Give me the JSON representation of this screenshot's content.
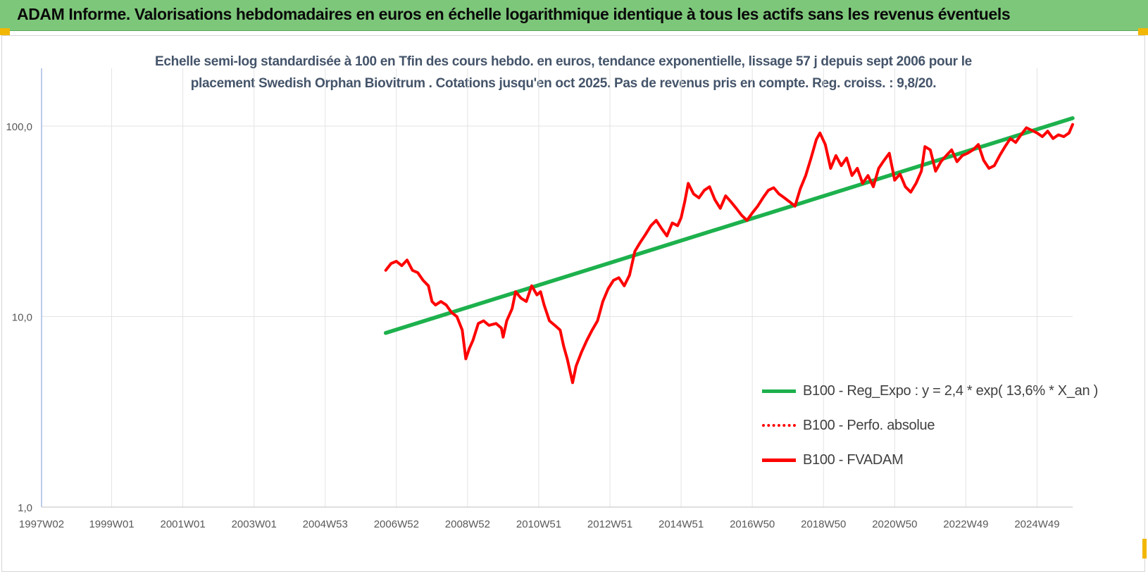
{
  "banner": {
    "title": "ADAM Informe. Valorisations hebdomadaires en euros en échelle logarithmique identique à tous les actifs sans les revenus éventuels"
  },
  "colors": {
    "banner": "#7dc77a",
    "trend": "#1db14d",
    "series": "#ff0000",
    "title": "#44546a"
  },
  "chart_data": {
    "type": "line",
    "title_lines": [
      "Echelle semi-log standardisée à 100 en Tfin des cours hebdo. en euros, tendance exponentielle, lissage 57 j depuis sept 2006 pour le",
      "placement Swedish Orphan Biovitrum . Cotations jusqu'en oct 2025. Pas de revenus pris en compte. Reg. croiss. : 9,8/20."
    ],
    "y_scale": "log",
    "ylim": [
      1,
      200
    ],
    "y_ticks": [
      {
        "value": 1,
        "label": "1,0"
      },
      {
        "value": 10,
        "label": "10,0"
      },
      {
        "value": 100,
        "label": "100,0"
      }
    ],
    "xlim": [
      1997.03,
      2026.0
    ],
    "x_ticks": [
      {
        "x": 1997.03,
        "label": "1997W02"
      },
      {
        "x": 1999.0,
        "label": "1999W01"
      },
      {
        "x": 2001.0,
        "label": "2001W01"
      },
      {
        "x": 2003.0,
        "label": "2003W01"
      },
      {
        "x": 2005.0,
        "label": "2004W53"
      },
      {
        "x": 2007.0,
        "label": "2006W52"
      },
      {
        "x": 2009.0,
        "label": "2008W52"
      },
      {
        "x": 2011.0,
        "label": "2010W51"
      },
      {
        "x": 2013.0,
        "label": "2012W51"
      },
      {
        "x": 2015.0,
        "label": "2014W51"
      },
      {
        "x": 2017.0,
        "label": "2016W50"
      },
      {
        "x": 2019.0,
        "label": "2018W50"
      },
      {
        "x": 2021.0,
        "label": "2020W50"
      },
      {
        "x": 2023.0,
        "label": "2022W49"
      },
      {
        "x": 2025.0,
        "label": "2024W49"
      }
    ],
    "grid": {
      "vertical": true,
      "horizontal": true
    },
    "legend_position": "lower-right",
    "series": [
      {
        "name": "B100 - Reg_Expo : y = 2,4 * exp( 13,6% *  X_an )",
        "style": "solid-green",
        "points": [
          [
            2006.7,
            8.2
          ],
          [
            2026.0,
            110.0
          ]
        ]
      },
      {
        "name": "B100 - Perfo. absolue",
        "style": "dotted-red",
        "points": []
      },
      {
        "name": "B100 - FVADAM",
        "style": "solid-red",
        "points": [
          [
            2006.7,
            17.5
          ],
          [
            2006.85,
            19.0
          ],
          [
            2007.0,
            19.5
          ],
          [
            2007.15,
            18.5
          ],
          [
            2007.3,
            19.8
          ],
          [
            2007.45,
            17.5
          ],
          [
            2007.6,
            17.0
          ],
          [
            2007.75,
            15.5
          ],
          [
            2007.9,
            14.5
          ],
          [
            2008.0,
            12.0
          ],
          [
            2008.1,
            11.5
          ],
          [
            2008.25,
            12.0
          ],
          [
            2008.4,
            11.5
          ],
          [
            2008.55,
            10.5
          ],
          [
            2008.7,
            10.0
          ],
          [
            2008.85,
            8.5
          ],
          [
            2008.95,
            6.0
          ],
          [
            2009.05,
            6.8
          ],
          [
            2009.15,
            7.5
          ],
          [
            2009.3,
            9.2
          ],
          [
            2009.45,
            9.5
          ],
          [
            2009.6,
            9.0
          ],
          [
            2009.8,
            9.2
          ],
          [
            2009.95,
            8.7
          ],
          [
            2010.0,
            7.8
          ],
          [
            2010.1,
            9.5
          ],
          [
            2010.25,
            11.0
          ],
          [
            2010.35,
            13.5
          ],
          [
            2010.5,
            12.5
          ],
          [
            2010.65,
            12.0
          ],
          [
            2010.8,
            14.5
          ],
          [
            2010.95,
            13.0
          ],
          [
            2011.05,
            13.5
          ],
          [
            2011.15,
            11.5
          ],
          [
            2011.3,
            9.5
          ],
          [
            2011.45,
            9.0
          ],
          [
            2011.6,
            8.5
          ],
          [
            2011.7,
            7.0
          ],
          [
            2011.8,
            6.0
          ],
          [
            2011.95,
            4.5
          ],
          [
            2012.05,
            5.5
          ],
          [
            2012.2,
            6.5
          ],
          [
            2012.35,
            7.5
          ],
          [
            2012.5,
            8.5
          ],
          [
            2012.65,
            9.5
          ],
          [
            2012.8,
            12.0
          ],
          [
            2012.95,
            14.0
          ],
          [
            2013.1,
            15.5
          ],
          [
            2013.25,
            16.0
          ],
          [
            2013.4,
            14.5
          ],
          [
            2013.55,
            16.5
          ],
          [
            2013.7,
            22.0
          ],
          [
            2013.85,
            24.5
          ],
          [
            2014.0,
            27.0
          ],
          [
            2014.15,
            30.0
          ],
          [
            2014.3,
            32.0
          ],
          [
            2014.45,
            29.0
          ],
          [
            2014.6,
            26.5
          ],
          [
            2014.75,
            31.0
          ],
          [
            2014.9,
            30.0
          ],
          [
            2015.0,
            33.0
          ],
          [
            2015.1,
            40.0
          ],
          [
            2015.2,
            50.0
          ],
          [
            2015.35,
            44.0
          ],
          [
            2015.5,
            42.0
          ],
          [
            2015.65,
            46.0
          ],
          [
            2015.8,
            48.0
          ],
          [
            2015.95,
            41.0
          ],
          [
            2016.1,
            37.0
          ],
          [
            2016.25,
            43.0
          ],
          [
            2016.4,
            40.0
          ],
          [
            2016.55,
            37.0
          ],
          [
            2016.7,
            34.0
          ],
          [
            2016.85,
            32.0
          ],
          [
            2017.0,
            35.0
          ],
          [
            2017.15,
            38.0
          ],
          [
            2017.3,
            42.0
          ],
          [
            2017.45,
            46.0
          ],
          [
            2017.6,
            47.5
          ],
          [
            2017.75,
            44.0
          ],
          [
            2017.9,
            42.0
          ],
          [
            2018.05,
            40.0
          ],
          [
            2018.2,
            38.0
          ],
          [
            2018.35,
            47.0
          ],
          [
            2018.5,
            55.0
          ],
          [
            2018.65,
            68.0
          ],
          [
            2018.8,
            85.0
          ],
          [
            2018.9,
            92.0
          ],
          [
            2019.05,
            80.0
          ],
          [
            2019.2,
            60.0
          ],
          [
            2019.35,
            70.0
          ],
          [
            2019.5,
            62.0
          ],
          [
            2019.65,
            68.0
          ],
          [
            2019.8,
            55.0
          ],
          [
            2019.95,
            60.0
          ],
          [
            2020.1,
            50.0
          ],
          [
            2020.25,
            55.0
          ],
          [
            2020.4,
            48.0
          ],
          [
            2020.55,
            60.0
          ],
          [
            2020.7,
            66.0
          ],
          [
            2020.85,
            72.0
          ],
          [
            2021.0,
            52.0
          ],
          [
            2021.15,
            56.0
          ],
          [
            2021.3,
            48.0
          ],
          [
            2021.45,
            45.0
          ],
          [
            2021.6,
            50.0
          ],
          [
            2021.75,
            58.0
          ],
          [
            2021.85,
            78.0
          ],
          [
            2022.0,
            75.0
          ],
          [
            2022.15,
            58.0
          ],
          [
            2022.3,
            65.0
          ],
          [
            2022.45,
            70.0
          ],
          [
            2022.6,
            75.0
          ],
          [
            2022.75,
            65.0
          ],
          [
            2022.9,
            70.0
          ],
          [
            2023.05,
            72.0
          ],
          [
            2023.2,
            75.0
          ],
          [
            2023.35,
            80.0
          ],
          [
            2023.5,
            66.0
          ],
          [
            2023.65,
            60.0
          ],
          [
            2023.8,
            62.0
          ],
          [
            2023.95,
            70.0
          ],
          [
            2024.1,
            78.0
          ],
          [
            2024.25,
            86.0
          ],
          [
            2024.4,
            82.0
          ],
          [
            2024.55,
            90.0
          ],
          [
            2024.7,
            98.0
          ],
          [
            2024.85,
            95.0
          ],
          [
            2025.0,
            92.0
          ],
          [
            2025.15,
            88.0
          ],
          [
            2025.3,
            94.0
          ],
          [
            2025.45,
            86.0
          ],
          [
            2025.6,
            90.0
          ],
          [
            2025.75,
            88.0
          ],
          [
            2025.9,
            92.0
          ],
          [
            2026.0,
            102.0
          ]
        ]
      }
    ]
  }
}
